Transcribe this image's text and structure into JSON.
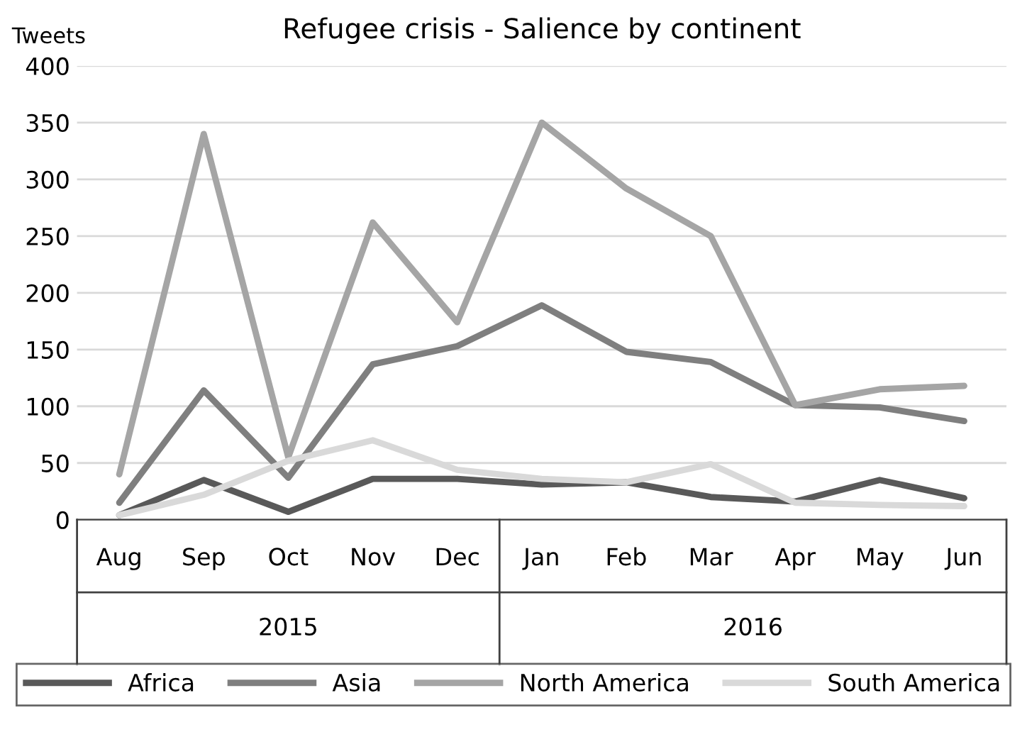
{
  "chart_data": {
    "type": "line",
    "title": "Refugee crisis - Salience by continent",
    "ylabel": "Tweets",
    "categories": [
      "Aug",
      "Sep",
      "Oct",
      "Nov",
      "Dec",
      "Jan",
      "Feb",
      "Mar",
      "Apr",
      "May",
      "Jun"
    ],
    "series": [
      {
        "name": "Africa",
        "color": "#595959",
        "values": [
          4,
          35,
          7,
          36,
          36,
          31,
          33,
          20,
          16,
          35,
          19
        ]
      },
      {
        "name": "Asia",
        "color": "#7f7f7f",
        "values": [
          15,
          114,
          37,
          137,
          153,
          189,
          148,
          139,
          101,
          99,
          87
        ]
      },
      {
        "name": "North America",
        "color": "#a5a5a5",
        "values": [
          40,
          340,
          55,
          262,
          174,
          350,
          292,
          250,
          101,
          115,
          118
        ]
      },
      {
        "name": "South America",
        "color": "#d9d9d9",
        "values": [
          4,
          22,
          52,
          70,
          44,
          36,
          33,
          49,
          15,
          13,
          12
        ]
      }
    ],
    "annotations": [
      "2015",
      "2016"
    ],
    "ylim": [
      0,
      400
    ],
    "yticks": [
      0,
      50,
      100,
      150,
      200,
      250,
      300,
      350,
      400
    ],
    "grid": "y",
    "legend": "bottom",
    "marker": "none",
    "line_style": "solid"
  }
}
